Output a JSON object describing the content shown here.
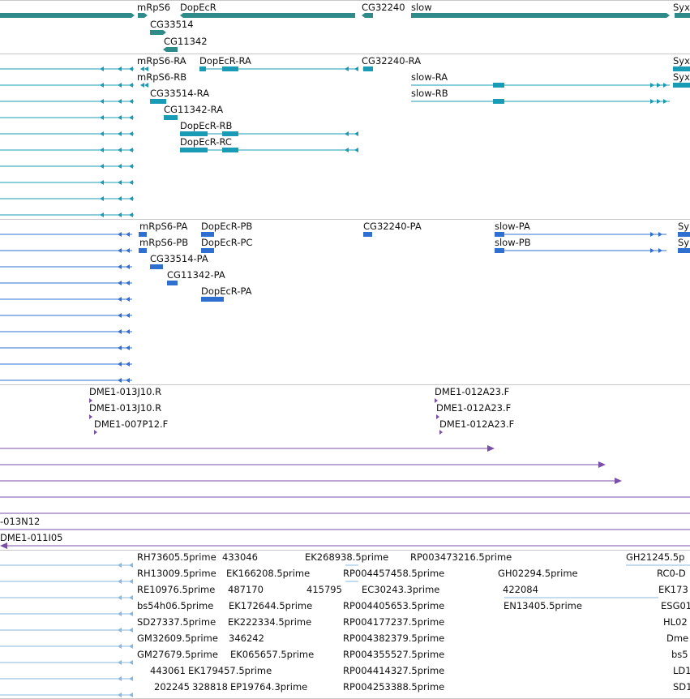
{
  "colors": {
    "gene": "#2f8a8a",
    "transcript": "#1a9bb5",
    "protein": "#2f6fcf",
    "bac": "#7a4fa8",
    "est": "#88b8e0",
    "divider": "#c8c8c8"
  },
  "tracks": {
    "genes": {
      "labels": [
        "mRpS6",
        "DopEcR",
        "CG32240",
        "slow",
        "Syx",
        "CG33514",
        "CG11342"
      ]
    },
    "transcripts": {
      "labels": [
        "mRpS6-RA",
        "DopEcR-RA",
        "CG32240-RA",
        "Syx",
        "mRpS6-RB",
        "slow-RA",
        "Syx",
        "CG33514-RA",
        "slow-RB",
        "CG11342-RA",
        "DopEcR-RB",
        "DopEcR-RC"
      ]
    },
    "proteins": {
      "labels": [
        "mRpS6-PA",
        "DopEcR-PB",
        "CG32240-PA",
        "slow-PA",
        "Sy",
        "mRpS6-PB",
        "DopEcR-PC",
        "slow-PB",
        "Sy",
        "CG33514-PA",
        "CG11342-PA",
        "DopEcR-PA"
      ]
    },
    "bac_ends": {
      "labels": [
        "DME1-013J10.R",
        "DME1-013J10.R",
        "DME1-007P12.F",
        "DME1-012A23.F",
        "DME1-012A23.F",
        "DME1-012A23.F",
        "-013N12",
        "DME1-011I05"
      ]
    },
    "ests": {
      "labels": [
        "RH73605.5prime",
        "433046",
        "EK268938.5prime",
        "RP003473216.5prime",
        "GH21245.5p",
        "RH13009.5prime",
        "EK166208.5prime",
        "RP004457458.5prime",
        "GH02294.5prime",
        "RC0-D",
        "RE10976.5prime",
        "487170",
        "415795",
        "EC30243.3prime",
        "422084",
        "EK173",
        "bs54h06.5prime",
        "EK172644.5prime",
        "RP004405653.5prime",
        "EN13405.5prime",
        "ESG01",
        "SD27337.5prime",
        "EK222334.5prime",
        "RP004177237.5prime",
        "HL02",
        "GM32609.5prime",
        "346242",
        "RP004382379.5prime",
        "Dme",
        "GM27679.5prime",
        "EK065657.5prime",
        "RP004355527.5prime",
        "bs5",
        "443061",
        "EK179457.5prime",
        "RP004414327.5prime",
        "LD1",
        "202245",
        "328818",
        "EP19764.3prime",
        "RP004253388.5prime",
        "SD1"
      ]
    }
  }
}
